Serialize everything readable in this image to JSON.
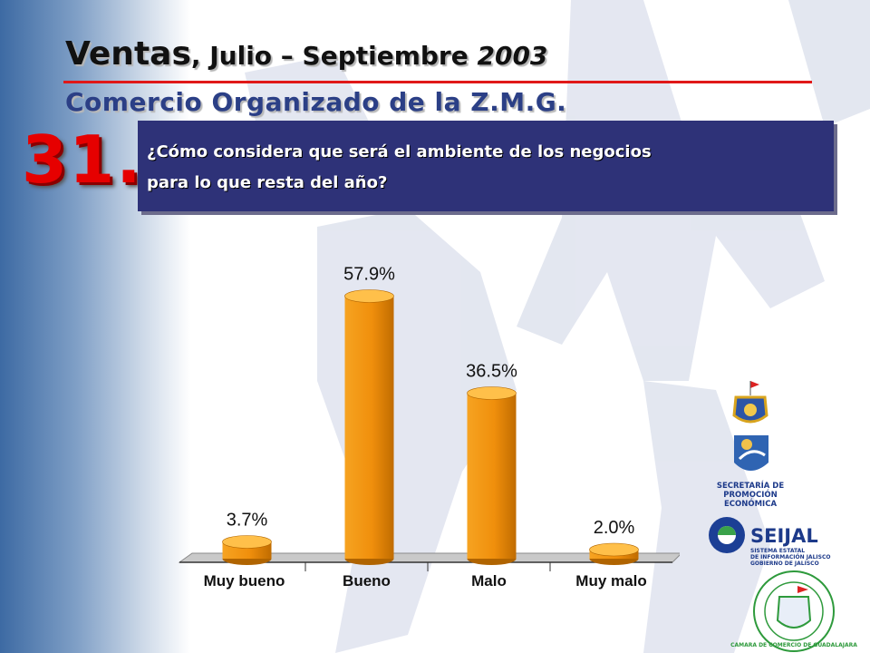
{
  "header": {
    "title_part1": "Ventas",
    "title_part2": ", Julio – Septiembre ",
    "title_year": "2003",
    "subtitle": "Comercio Organizado de la Z.M.G."
  },
  "question": {
    "number": "31.",
    "line1": "¿Cómo considera que será el ambiente de los negocios",
    "line2": "para lo que resta del año?"
  },
  "logos": {
    "secretaria_line1": "SECRETARÍA DE",
    "secretaria_line2": "PROMOCIÓN",
    "secretaria_line3": "ECONÓMICA",
    "seijal_name": "SEIJAL",
    "seijal_line1": "SISTEMA ESTATAL",
    "seijal_line2": "DE INFORMACIÓN JALISCO",
    "seijal_line3": "GOBIERNO DE JALISCO",
    "camara_text": "CAMARA DE COMERCIO DE GUADALAJARA"
  },
  "colors": {
    "bar": "#f0920c",
    "bar_dark": "#b06400",
    "bar_light": "#ffc04a",
    "title_rule": "#e01818",
    "question_bg": "#2e3278",
    "question_number": "#e60000"
  },
  "chart_data": {
    "type": "bar",
    "categories": [
      "Muy bueno",
      "Bueno",
      "Malo",
      "Muy malo"
    ],
    "values": [
      3.7,
      57.9,
      36.5,
      2.0
    ],
    "value_labels": [
      "3.7%",
      "57.9%",
      "36.5%",
      "2.0%"
    ],
    "ylim": [
      0,
      60
    ],
    "grid": false,
    "legend": "none"
  }
}
